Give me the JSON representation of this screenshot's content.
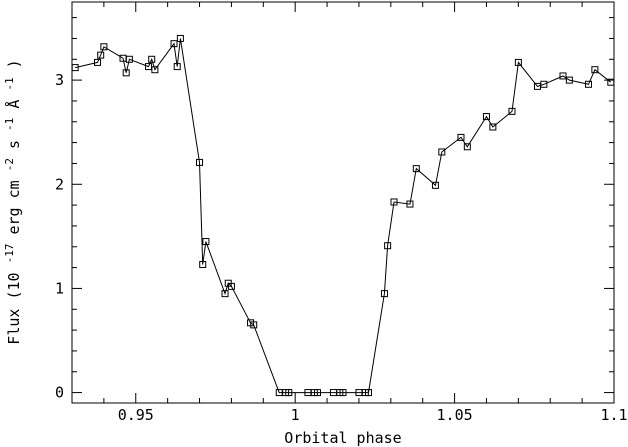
{
  "chart_data": {
    "type": "line",
    "title": "",
    "xlabel": "Orbital phase",
    "ylabel": "Flux (10 -17 erg cm-2 s-1 Å-1)",
    "ylabel_parts": {
      "prefix": "Flux (10",
      "exp1": "-17",
      "unit1": "erg cm",
      "exp2": "-2",
      "unit2": "s",
      "exp3": "-1",
      "unit3": "Å",
      "exp4": "-1",
      "suffix": ")"
    },
    "xlim": [
      0.93,
      1.1
    ],
    "ylim": [
      -0.1,
      3.75
    ],
    "x_ticks": [
      {
        "value": 0.95,
        "label": "0.95"
      },
      {
        "value": 1.0,
        "label": "1"
      },
      {
        "value": 1.05,
        "label": "1.05"
      },
      {
        "value": 1.1,
        "label": "1.1"
      }
    ],
    "y_ticks": [
      {
        "value": 0,
        "label": "0"
      },
      {
        "value": 1,
        "label": "1"
      },
      {
        "value": 2,
        "label": "2"
      },
      {
        "value": 3,
        "label": "3"
      }
    ],
    "marker": "open-square",
    "grid": false,
    "series": [
      {
        "points": [
          [
            0.931,
            3.12
          ],
          [
            0.938,
            3.17
          ],
          [
            0.939,
            3.24
          ],
          [
            0.94,
            3.32
          ],
          [
            0.946,
            3.21
          ],
          [
            0.947,
            3.07
          ],
          [
            0.948,
            3.2
          ],
          [
            0.954,
            3.13
          ],
          [
            0.955,
            3.2
          ],
          [
            0.956,
            3.1
          ],
          [
            0.962,
            3.35
          ],
          [
            0.963,
            3.13
          ],
          [
            0.964,
            3.4
          ],
          [
            0.97,
            2.21
          ],
          [
            0.971,
            1.23
          ],
          [
            0.972,
            1.45
          ],
          [
            0.978,
            0.95
          ],
          [
            0.979,
            1.05
          ],
          [
            0.98,
            1.02
          ],
          [
            0.986,
            0.67
          ],
          [
            0.987,
            0.65
          ],
          [
            0.995,
            0.0
          ],
          [
            0.997,
            0.0
          ],
          [
            0.998,
            0.0
          ],
          [
            1.004,
            0.0
          ],
          [
            1.006,
            0.0
          ],
          [
            1.007,
            0.0
          ],
          [
            1.012,
            0.0
          ],
          [
            1.014,
            0.0
          ],
          [
            1.015,
            0.0
          ],
          [
            1.02,
            0.0
          ],
          [
            1.022,
            0.0
          ],
          [
            1.023,
            0.0
          ],
          [
            1.028,
            0.95
          ],
          [
            1.029,
            1.41
          ],
          [
            1.031,
            1.83
          ],
          [
            1.036,
            1.81
          ],
          [
            1.038,
            2.15
          ],
          [
            1.044,
            1.99
          ],
          [
            1.046,
            2.31
          ],
          [
            1.052,
            2.45
          ],
          [
            1.054,
            2.36
          ],
          [
            1.06,
            2.65
          ],
          [
            1.062,
            2.55
          ],
          [
            1.068,
            2.7
          ],
          [
            1.07,
            3.17
          ],
          [
            1.076,
            2.94
          ],
          [
            1.078,
            2.96
          ],
          [
            1.084,
            3.04
          ],
          [
            1.086,
            3.0
          ],
          [
            1.092,
            2.96
          ],
          [
            1.094,
            3.1
          ],
          [
            1.099,
            2.98
          ]
        ]
      }
    ]
  }
}
